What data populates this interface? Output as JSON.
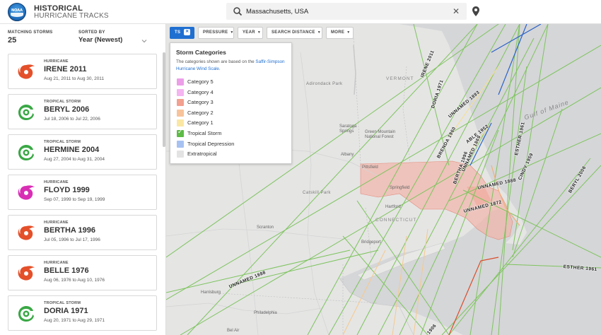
{
  "header": {
    "title_line1": "HISTORICAL",
    "title_line2": "HURRICANE TRACKS",
    "logo_text": "NOAA",
    "search_value": "Massachusetts, USA"
  },
  "sidebar": {
    "matching_label": "MATCHING STORMS",
    "matching_count": "25",
    "sorted_label": "SORTED BY",
    "sorted_value": "Year (Newest)",
    "storms": [
      {
        "type": "HURRICANE",
        "name": "IRENE 2011",
        "dates": "Aug 21, 2011 to Aug 30, 2011",
        "icon": "hurricane-icon",
        "color": "#e4502a"
      },
      {
        "type": "TROPICAL STORM",
        "name": "BERYL 2006",
        "dates": "Jul 18, 2006 to Jul 22, 2006",
        "icon": "tropical-storm-icon",
        "color": "#3aa845"
      },
      {
        "type": "TROPICAL STORM",
        "name": "HERMINE 2004",
        "dates": "Aug 27, 2004 to Aug 31, 2004",
        "icon": "tropical-storm-icon",
        "color": "#3aa845"
      },
      {
        "type": "HURRICANE",
        "name": "FLOYD 1999",
        "dates": "Sep 07, 1999 to Sep 19, 1999",
        "icon": "hurricane-icon",
        "color": "#d92fb5"
      },
      {
        "type": "HURRICANE",
        "name": "BERTHA 1996",
        "dates": "Jul 05, 1996 to Jul 17, 1996",
        "icon": "hurricane-icon",
        "color": "#e4502a"
      },
      {
        "type": "HURRICANE",
        "name": "BELLE 1976",
        "dates": "Aug 06, 1976 to Aug 10, 1976",
        "icon": "hurricane-icon",
        "color": "#e4502a"
      },
      {
        "type": "TROPICAL STORM",
        "name": "DORIA 1971",
        "dates": "Aug 20, 1971 to Aug 29, 1971",
        "icon": "tropical-storm-icon",
        "color": "#3aa845"
      }
    ]
  },
  "filters": {
    "ts": "TS",
    "pressure": "PRESSURE",
    "year": "YEAR",
    "search_distance": "SEARCH DISTANCE",
    "more": "MORE",
    "clear_symbol": "✕"
  },
  "categories_panel": {
    "title": "Storm Categories",
    "desc_before": "The categories shown are based on the ",
    "desc_link": "Saffir-Simpson Hurricane Wind Scale",
    "desc_after": ".",
    "items": [
      {
        "label": "Category 5",
        "color": "#ec9fe8",
        "checked": false
      },
      {
        "label": "Category 4",
        "color": "#f4b5f0",
        "checked": false
      },
      {
        "label": "Category 3",
        "color": "#f2a08f",
        "checked": false
      },
      {
        "label": "Category 2",
        "color": "#f8c39b",
        "checked": false
      },
      {
        "label": "Category 1",
        "color": "#fbe7a4",
        "checked": false
      },
      {
        "label": "Tropical Storm",
        "color": "#5dbb46",
        "checked": true
      },
      {
        "label": "Tropical Depression",
        "color": "#a7c2f2",
        "checked": false
      },
      {
        "label": "Extratropical",
        "color": "#e3e3e3",
        "checked": false
      }
    ]
  },
  "map": {
    "labels": {
      "vermont": "VERMONT",
      "adirondack": "Adirondack Park",
      "green_mountain": "Green Mountain National Forest",
      "saratoga": "Saratoga Springs",
      "albany": "Albany",
      "pittsfield": "Pittsfield",
      "springfield": "Springfield",
      "catskill": "Catskill Park",
      "hartford": "Hartford",
      "connecticut": "CONNECTICUT",
      "scranton": "Scranton",
      "bridgeport": "Bridgeport",
      "harrisburg": "Harrisburg",
      "philadelphia": "Philadelphia",
      "bel_air": "Bel Air",
      "gulf_of_maine": "Gulf of Maine"
    },
    "tracks": [
      {
        "label": "IRENE 2011"
      },
      {
        "label": "DORIA 1971"
      },
      {
        "label": "UNNAMED 1893"
      },
      {
        "label": "BRENDA 1960"
      },
      {
        "label": "ABLE 1952"
      },
      {
        "label": "ESTHER 1961"
      },
      {
        "label": "UNNAMED 1869"
      },
      {
        "label": "BERTHA 1996"
      },
      {
        "label": "UNNAMED 1888"
      },
      {
        "label": "CINDY 1959"
      },
      {
        "label": "BERYL 2006"
      },
      {
        "label": "UNNAMED 1872"
      },
      {
        "label": "UNNAMED 1888"
      },
      {
        "label": "ESTHER 1961"
      },
      {
        "label": "1906"
      }
    ]
  }
}
